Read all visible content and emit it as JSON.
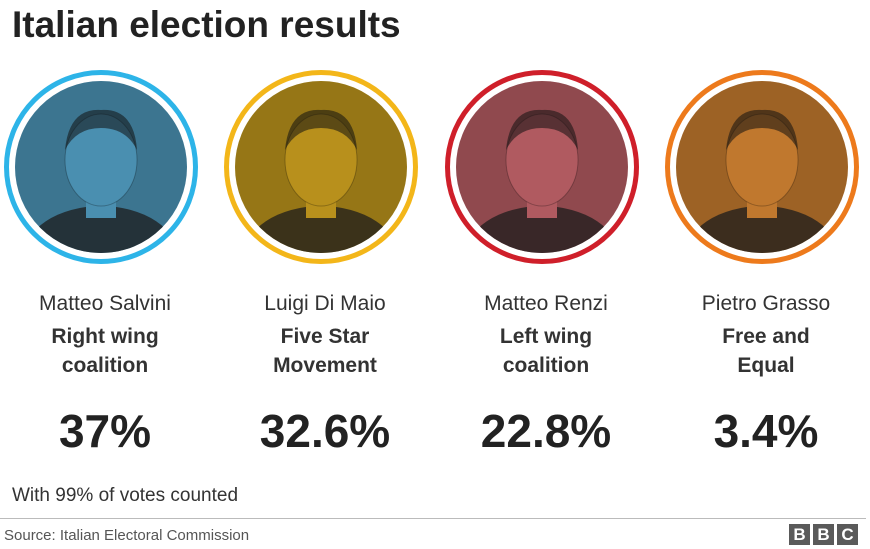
{
  "header": {
    "title": "Italian election results"
  },
  "chart_data": {
    "type": "table",
    "title": "Italian election results",
    "candidates": [
      {
        "name": "Matteo Salvini",
        "party_line1": "Right wing",
        "party_line2": "coalition",
        "share_label": "37%",
        "value": 37,
        "ring_color": "#2db4e8",
        "tint_color": "#4a8fb0"
      },
      {
        "name": "Luigi Di Maio",
        "party_line1": "Five Star",
        "party_line2": "Movement",
        "share_label": "32.6%",
        "value": 32.6,
        "ring_color": "#f3b619",
        "tint_color": "#b8901c"
      },
      {
        "name": "Matteo Renzi",
        "party_line1": "Left wing",
        "party_line2": "coalition",
        "share_label": "22.8%",
        "value": 22.8,
        "ring_color": "#cf1f2a",
        "tint_color": "#b05a60"
      },
      {
        "name": "Pietro Grasso",
        "party_line1": "Free and",
        "party_line2": "Equal",
        "share_label": "3.4%",
        "value": 3.4,
        "ring_color": "#ed7a1c",
        "tint_color": "#c0782e"
      }
    ]
  },
  "footer": {
    "note": "With 99% of votes counted",
    "source": "Source: Italian Electoral Commission",
    "logo_letters": [
      "B",
      "B",
      "C"
    ]
  }
}
